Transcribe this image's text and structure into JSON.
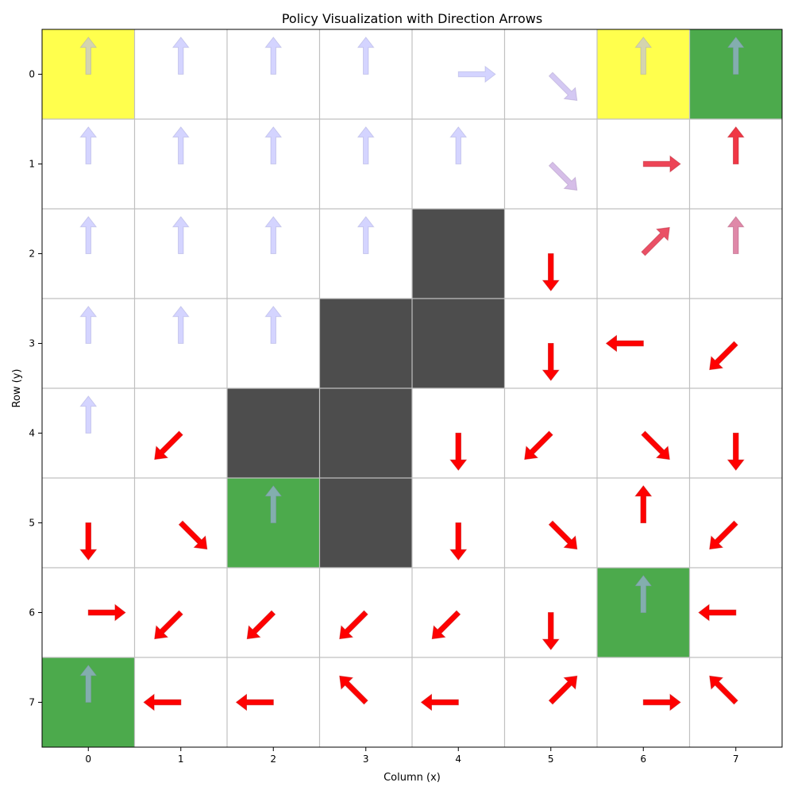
{
  "chart_data": {
    "type": "heatmap",
    "title": "Policy Visualization with Direction Arrows",
    "xlabel": "Column (x)",
    "ylabel": "Row (y)",
    "x_ticks": [
      "0",
      "1",
      "2",
      "3",
      "4",
      "5",
      "6",
      "7"
    ],
    "y_ticks": [
      "0",
      "1",
      "2",
      "3",
      "4",
      "5",
      "6",
      "7"
    ],
    "xlim": [
      -0.5,
      7.5
    ],
    "ylim": [
      7.5,
      -0.5
    ],
    "grid": true,
    "colors": {
      "start": "#ffff4d",
      "goal": "#4caa4c",
      "wall": "#4d4d4d",
      "grid": "#c0c0c0",
      "arrow_blue": "#b0b0ff",
      "arrow_red": "#ff0000"
    },
    "cell_types": {
      "start": [
        [
          0,
          0
        ],
        [
          6,
          0
        ]
      ],
      "goal": [
        [
          7,
          0
        ],
        [
          2,
          5
        ],
        [
          6,
          6
        ],
        [
          0,
          7
        ]
      ],
      "wall": [
        [
          4,
          2
        ],
        [
          3,
          3
        ],
        [
          4,
          3
        ],
        [
          2,
          4
        ],
        [
          3,
          4
        ],
        [
          3,
          5
        ]
      ]
    },
    "arrows": [
      {
        "x": 0,
        "y": 0,
        "dir": "up",
        "t": 0
      },
      {
        "x": 1,
        "y": 0,
        "dir": "up",
        "t": 0
      },
      {
        "x": 2,
        "y": 0,
        "dir": "up",
        "t": 0
      },
      {
        "x": 3,
        "y": 0,
        "dir": "up",
        "t": 0
      },
      {
        "x": 4,
        "y": 0,
        "dir": "right",
        "t": 0
      },
      {
        "x": 5,
        "y": 0,
        "dir": "down-right",
        "t": 0.08
      },
      {
        "x": 6,
        "y": 0,
        "dir": "up",
        "t": 0
      },
      {
        "x": 7,
        "y": 0,
        "dir": "up",
        "t": 0
      },
      {
        "x": 0,
        "y": 1,
        "dir": "up",
        "t": 0
      },
      {
        "x": 1,
        "y": 1,
        "dir": "up",
        "t": 0
      },
      {
        "x": 2,
        "y": 1,
        "dir": "up",
        "t": 0
      },
      {
        "x": 3,
        "y": 1,
        "dir": "up",
        "t": 0
      },
      {
        "x": 4,
        "y": 1,
        "dir": "up",
        "t": 0
      },
      {
        "x": 5,
        "y": 1,
        "dir": "down-right",
        "t": 0.15
      },
      {
        "x": 6,
        "y": 1,
        "dir": "right",
        "t": 0.75
      },
      {
        "x": 7,
        "y": 1,
        "dir": "up",
        "t": 0.8
      },
      {
        "x": 0,
        "y": 2,
        "dir": "up",
        "t": 0
      },
      {
        "x": 1,
        "y": 2,
        "dir": "up",
        "t": 0
      },
      {
        "x": 2,
        "y": 2,
        "dir": "up",
        "t": 0
      },
      {
        "x": 3,
        "y": 2,
        "dir": "up",
        "t": 0
      },
      {
        "x": 5,
        "y": 2,
        "dir": "down",
        "t": 1
      },
      {
        "x": 6,
        "y": 2,
        "dir": "up-right",
        "t": 0.7
      },
      {
        "x": 7,
        "y": 2,
        "dir": "up",
        "t": 0.45
      },
      {
        "x": 0,
        "y": 3,
        "dir": "up",
        "t": 0
      },
      {
        "x": 1,
        "y": 3,
        "dir": "up",
        "t": 0
      },
      {
        "x": 2,
        "y": 3,
        "dir": "up",
        "t": 0
      },
      {
        "x": 5,
        "y": 3,
        "dir": "down",
        "t": 1
      },
      {
        "x": 6,
        "y": 3,
        "dir": "left",
        "t": 1
      },
      {
        "x": 7,
        "y": 3,
        "dir": "down-left",
        "t": 1
      },
      {
        "x": 0,
        "y": 4,
        "dir": "up",
        "t": 0
      },
      {
        "x": 1,
        "y": 4,
        "dir": "down-left",
        "t": 1
      },
      {
        "x": 4,
        "y": 4,
        "dir": "down",
        "t": 1
      },
      {
        "x": 5,
        "y": 4,
        "dir": "down-left",
        "t": 1
      },
      {
        "x": 6,
        "y": 4,
        "dir": "down-right",
        "t": 1
      },
      {
        "x": 7,
        "y": 4,
        "dir": "down",
        "t": 1
      },
      {
        "x": 0,
        "y": 5,
        "dir": "down",
        "t": 1
      },
      {
        "x": 1,
        "y": 5,
        "dir": "down-right",
        "t": 1
      },
      {
        "x": 2,
        "y": 5,
        "dir": "up",
        "t": 0
      },
      {
        "x": 4,
        "y": 5,
        "dir": "down",
        "t": 1
      },
      {
        "x": 5,
        "y": 5,
        "dir": "down-right",
        "t": 1
      },
      {
        "x": 6,
        "y": 5,
        "dir": "up",
        "t": 1
      },
      {
        "x": 7,
        "y": 5,
        "dir": "down-left",
        "t": 1
      },
      {
        "x": 0,
        "y": 6,
        "dir": "right",
        "t": 1
      },
      {
        "x": 1,
        "y": 6,
        "dir": "down-left",
        "t": 1
      },
      {
        "x": 2,
        "y": 6,
        "dir": "down-left",
        "t": 1
      },
      {
        "x": 3,
        "y": 6,
        "dir": "down-left",
        "t": 1
      },
      {
        "x": 4,
        "y": 6,
        "dir": "down-left",
        "t": 1
      },
      {
        "x": 5,
        "y": 6,
        "dir": "down",
        "t": 1
      },
      {
        "x": 6,
        "y": 6,
        "dir": "up",
        "t": 0
      },
      {
        "x": 7,
        "y": 6,
        "dir": "left",
        "t": 1
      },
      {
        "x": 0,
        "y": 7,
        "dir": "up",
        "t": 0
      },
      {
        "x": 1,
        "y": 7,
        "dir": "left",
        "t": 1
      },
      {
        "x": 2,
        "y": 7,
        "dir": "left",
        "t": 1
      },
      {
        "x": 3,
        "y": 7,
        "dir": "up-left",
        "t": 1
      },
      {
        "x": 4,
        "y": 7,
        "dir": "left",
        "t": 1
      },
      {
        "x": 5,
        "y": 7,
        "dir": "up-right",
        "t": 1
      },
      {
        "x": 6,
        "y": 7,
        "dir": "right",
        "t": 1
      },
      {
        "x": 7,
        "y": 7,
        "dir": "up-left",
        "t": 1
      }
    ]
  }
}
